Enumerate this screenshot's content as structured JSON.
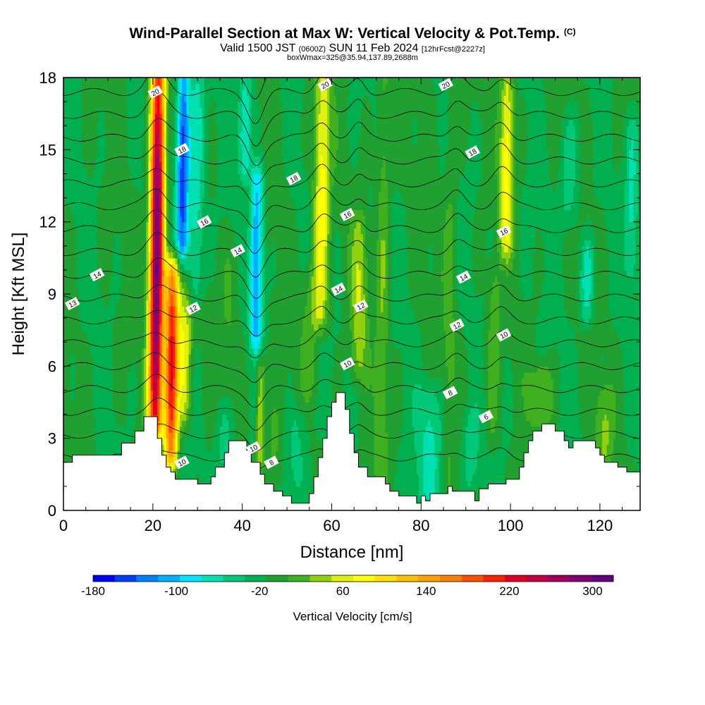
{
  "title": {
    "main": "Wind-Parallel Section at Max W: Vertical Velocity & Pot.Temp.",
    "copyright": "(C)",
    "valid_prefix": "Valid 1500 JST",
    "valid_utc": "(0600Z)",
    "valid_day": "SUN 11 Feb 2024",
    "forecast": "[12hrFcst@2227z]",
    "box_info": "boxWmax=325@35.94,137.89,2688m"
  },
  "chart_data": {
    "type": "heatmap",
    "xlabel": "Distance [nm]",
    "ylabel": "Height [Kft MSL]",
    "xlim": [
      0,
      129
    ],
    "ylim": [
      0,
      18
    ],
    "xticks": [
      0,
      20,
      40,
      60,
      80,
      100,
      120
    ],
    "yticks": [
      0,
      3,
      6,
      9,
      12,
      15,
      18
    ],
    "colorbar": {
      "label": "Vertical Velocity [cm/s]",
      "ticks": [
        -180,
        -100,
        -20,
        60,
        140,
        220,
        300
      ],
      "min": -180,
      "max": 320,
      "colors": [
        "#0000ff",
        "#0040ff",
        "#0080ff",
        "#00b0ff",
        "#00e5ff",
        "#00e0b0",
        "#00c878",
        "#00b050",
        "#20a030",
        "#40b020",
        "#90d010",
        "#e0f010",
        "#ffff00",
        "#ffe000",
        "#ffc000",
        "#ffa000",
        "#ff8000",
        "#ff5000",
        "#ff2000",
        "#e00020",
        "#c00040",
        "#a00060",
        "#800070",
        "#600080"
      ]
    },
    "terrain": [
      [
        0,
        2
      ],
      [
        2,
        2
      ],
      [
        2,
        2.3
      ],
      [
        13,
        2.3
      ],
      [
        13,
        2.8
      ],
      [
        16,
        2.8
      ],
      [
        16,
        3.3
      ],
      [
        18,
        3.3
      ],
      [
        18,
        3.9
      ],
      [
        21,
        3.9
      ],
      [
        21,
        3
      ],
      [
        22,
        3
      ],
      [
        22,
        2.3
      ],
      [
        23,
        2.3
      ],
      [
        23,
        1.8
      ],
      [
        24,
        1.8
      ],
      [
        24,
        1.6
      ],
      [
        25,
        1.6
      ],
      [
        25,
        1.3
      ],
      [
        30,
        1.3
      ],
      [
        30,
        1.1
      ],
      [
        33,
        1.1
      ],
      [
        33,
        1.4
      ],
      [
        34,
        1.4
      ],
      [
        34,
        1.8
      ],
      [
        36,
        1.8
      ],
      [
        36,
        2.4
      ],
      [
        37,
        2.4
      ],
      [
        37,
        2.9
      ],
      [
        41,
        2.9
      ],
      [
        41,
        2.5
      ],
      [
        42,
        2.5
      ],
      [
        42,
        2
      ],
      [
        44,
        2
      ],
      [
        44,
        1.5
      ],
      [
        45,
        1.5
      ],
      [
        45,
        1.1
      ],
      [
        47,
        1.1
      ],
      [
        47,
        0.8
      ],
      [
        49,
        0.8
      ],
      [
        49,
        0.6
      ],
      [
        51,
        0.6
      ],
      [
        51,
        0.3
      ],
      [
        55,
        0.3
      ],
      [
        55,
        0.7
      ],
      [
        56,
        0.7
      ],
      [
        56,
        1.4
      ],
      [
        57,
        1.4
      ],
      [
        57,
        2.2
      ],
      [
        58,
        2.2
      ],
      [
        58,
        3
      ],
      [
        59,
        3
      ],
      [
        59,
        3.9
      ],
      [
        60,
        3.9
      ],
      [
        60,
        4.5
      ],
      [
        61,
        4.5
      ],
      [
        61,
        4.9
      ],
      [
        63,
        4.9
      ],
      [
        63,
        4.2
      ],
      [
        64,
        4.2
      ],
      [
        64,
        3.2
      ],
      [
        65,
        3.2
      ],
      [
        65,
        2.4
      ],
      [
        66,
        2.4
      ],
      [
        66,
        1.8
      ],
      [
        68,
        1.8
      ],
      [
        68,
        1.4
      ],
      [
        72,
        1.4
      ],
      [
        72,
        1.1
      ],
      [
        73,
        1.1
      ],
      [
        73,
        0.8
      ],
      [
        75,
        0.8
      ],
      [
        75,
        0.6
      ],
      [
        79,
        0.6
      ],
      [
        79,
        0.3
      ],
      [
        80,
        0.3
      ],
      [
        80,
        0.6
      ],
      [
        81,
        0.6
      ],
      [
        81,
        0.4
      ],
      [
        82,
        0.4
      ],
      [
        82,
        0.7
      ],
      [
        86,
        0.7
      ],
      [
        86,
        1
      ],
      [
        87,
        1
      ],
      [
        87,
        0.8
      ],
      [
        92,
        0.8
      ],
      [
        92,
        0.4
      ],
      [
        93,
        0.4
      ],
      [
        93,
        0.9
      ],
      [
        95,
        0.9
      ],
      [
        95,
        1.1
      ],
      [
        99,
        1.1
      ],
      [
        99,
        1.3
      ],
      [
        102,
        1.3
      ],
      [
        102,
        1.8
      ],
      [
        103,
        1.8
      ],
      [
        103,
        2.4
      ],
      [
        104,
        2.4
      ],
      [
        104,
        2.9
      ],
      [
        105,
        2.9
      ],
      [
        105,
        3.3
      ],
      [
        107,
        3.3
      ],
      [
        107,
        3.6
      ],
      [
        110,
        3.6
      ],
      [
        110,
        3.3
      ],
      [
        112,
        3.3
      ],
      [
        112,
        2.9
      ],
      [
        113,
        2.9
      ],
      [
        113,
        2.6
      ],
      [
        114,
        2.6
      ],
      [
        114,
        2.9
      ],
      [
        119,
        2.9
      ],
      [
        119,
        2.6
      ],
      [
        120,
        2.6
      ],
      [
        120,
        2.3
      ],
      [
        121,
        2.3
      ],
      [
        121,
        2
      ],
      [
        124,
        2
      ],
      [
        124,
        1.8
      ],
      [
        126,
        1.8
      ],
      [
        126,
        1.6
      ],
      [
        129,
        1.6
      ]
    ],
    "updrafts": [
      {
        "x": 20.5,
        "bottom": 3.5,
        "top": 18,
        "peak": 320,
        "width": 1.6
      },
      {
        "x": 24,
        "bottom": 2.2,
        "top": 10,
        "peak": 240,
        "width": 1.5
      },
      {
        "x": 27,
        "bottom": 4,
        "top": 9,
        "peak": 80,
        "width": 1.5
      },
      {
        "x": 37,
        "bottom": 4,
        "top": 11,
        "peak": 20,
        "width": 2.2
      },
      {
        "x": 44,
        "bottom": 2,
        "top": 6,
        "peak": 70,
        "width": 1.0
      },
      {
        "x": 47,
        "bottom": 1,
        "top": 4,
        "peak": 30,
        "width": 1.8
      },
      {
        "x": 57.5,
        "bottom": 8,
        "top": 18,
        "peak": 95,
        "width": 1.8
      },
      {
        "x": 55,
        "bottom": 5,
        "top": 10,
        "peak": 30,
        "width": 2.0
      },
      {
        "x": 66,
        "bottom": 6,
        "top": 12,
        "peak": 55,
        "width": 1.8
      },
      {
        "x": 71,
        "bottom": 1.5,
        "top": 18,
        "peak": 40,
        "width": 1.5
      },
      {
        "x": 86,
        "bottom": 1,
        "top": 18,
        "peak": 25,
        "width": 1.5
      },
      {
        "x": 99,
        "bottom": 11,
        "top": 18,
        "peak": 95,
        "width": 1.5
      },
      {
        "x": 96,
        "bottom": 3,
        "top": 10,
        "peak": 35,
        "width": 1.5
      },
      {
        "x": 107,
        "bottom": 3.6,
        "top": 6,
        "peak": 45,
        "width": 2.5
      },
      {
        "x": 121,
        "bottom": 2,
        "top": 5,
        "peak": 40,
        "width": 2.0
      }
    ],
    "downdrafts": [
      {
        "x": 26.5,
        "bottom": 11,
        "top": 18,
        "peak": -150,
        "width": 1.4
      },
      {
        "x": 29.5,
        "bottom": 9,
        "top": 18,
        "peak": -60,
        "width": 1.8
      },
      {
        "x": 40.5,
        "bottom": 14,
        "top": 18,
        "peak": -70,
        "width": 1.5
      },
      {
        "x": 43,
        "bottom": 7,
        "top": 14,
        "peak": -110,
        "width": 1.4
      },
      {
        "x": 36,
        "bottom": 1.5,
        "top": 4.5,
        "peak": -40,
        "width": 2.0
      },
      {
        "x": 52,
        "bottom": 0.5,
        "top": 4,
        "peak": -35,
        "width": 2.5
      },
      {
        "x": 82,
        "bottom": 0.5,
        "top": 5,
        "peak": -50,
        "width": 3.0
      },
      {
        "x": 91,
        "bottom": 1,
        "top": 4,
        "peak": -40,
        "width": 2.0
      },
      {
        "x": 117,
        "bottom": 8,
        "top": 11,
        "peak": -60,
        "width": 1.5
      },
      {
        "x": 113,
        "bottom": 12,
        "top": 16,
        "peak": -40,
        "width": 2.0
      },
      {
        "x": 127,
        "bottom": 10,
        "top": 16,
        "peak": -50,
        "width": 1.5
      }
    ],
    "theta_contour_labels": [
      {
        "text": "20",
        "x": 20.5,
        "y": 17.4
      },
      {
        "text": "20",
        "x": 58.5,
        "y": 17.7
      },
      {
        "text": "20",
        "x": 85.5,
        "y": 17.7
      },
      {
        "text": "18",
        "x": 26.5,
        "y": 15
      },
      {
        "text": "18",
        "x": 51.5,
        "y": 13.8
      },
      {
        "text": "18",
        "x": 91.5,
        "y": 14.9
      },
      {
        "text": "16",
        "x": 31.5,
        "y": 12
      },
      {
        "text": "16",
        "x": 63.5,
        "y": 12.3
      },
      {
        "text": "16",
        "x": 98.5,
        "y": 11.6
      },
      {
        "text": "14",
        "x": 7.5,
        "y": 9.8
      },
      {
        "text": "14",
        "x": 39,
        "y": 10.8
      },
      {
        "text": "14",
        "x": 61.5,
        "y": 9.2
      },
      {
        "text": "14",
        "x": 89.5,
        "y": 9.7
      },
      {
        "text": "13",
        "x": 2,
        "y": 8.6
      },
      {
        "text": "12",
        "x": 29,
        "y": 8.4
      },
      {
        "text": "12",
        "x": 66.5,
        "y": 8.5
      },
      {
        "text": "12",
        "x": 88,
        "y": 7.7
      },
      {
        "text": "10",
        "x": 63.5,
        "y": 6.1
      },
      {
        "text": "10",
        "x": 98.5,
        "y": 7.3
      },
      {
        "text": "10",
        "x": 42.5,
        "y": 2.6
      },
      {
        "text": "10",
        "x": 26.5,
        "y": 2
      },
      {
        "text": "8",
        "x": 86.5,
        "y": 4.9
      },
      {
        "text": "8",
        "x": 46.5,
        "y": 2
      },
      {
        "text": "6",
        "x": 94.5,
        "y": 3.9
      }
    ]
  }
}
